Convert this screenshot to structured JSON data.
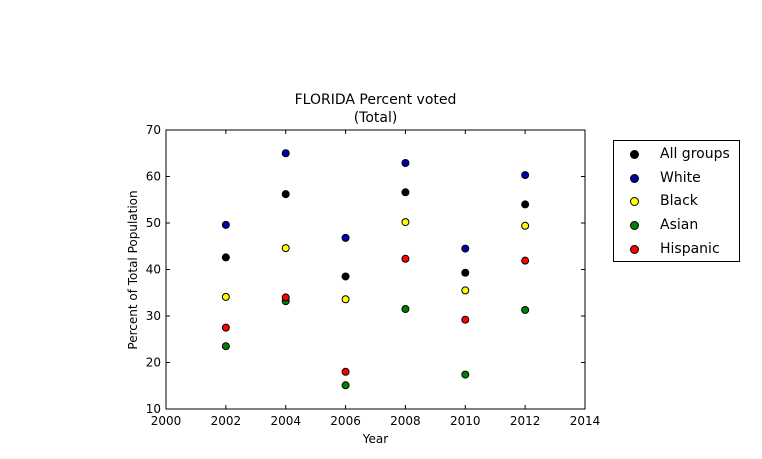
{
  "chart_data": {
    "type": "scatter",
    "title": "FLORIDA Percent voted",
    "subtitle": "(Total)",
    "xlabel": "Year",
    "ylabel": "Percent of Total Population",
    "xlim": [
      2000,
      2014
    ],
    "ylim": [
      10,
      70
    ],
    "xticks": [
      2000,
      2002,
      2004,
      2006,
      2008,
      2010,
      2012,
      2014
    ],
    "yticks": [
      10,
      20,
      30,
      40,
      50,
      60,
      70
    ],
    "grid": false,
    "legend_position": "outside-right",
    "x": [
      2002,
      2004,
      2006,
      2008,
      2010,
      2012
    ],
    "series": [
      {
        "name": "All groups",
        "color": "#000000",
        "values": [
          42.6,
          56.2,
          38.5,
          56.6,
          39.3,
          54.0
        ]
      },
      {
        "name": "White",
        "color": "#0000aa",
        "values": [
          49.6,
          65.0,
          46.8,
          62.9,
          44.5,
          60.3
        ]
      },
      {
        "name": "Black",
        "color": "#ffff00",
        "values": [
          34.1,
          44.6,
          33.6,
          50.2,
          35.5,
          49.4
        ]
      },
      {
        "name": "Asian",
        "color": "#008000",
        "values": [
          23.5,
          33.2,
          15.1,
          31.5,
          17.4,
          31.3
        ]
      },
      {
        "name": "Hispanic",
        "color": "#ff0000",
        "values": [
          27.5,
          34.0,
          18.0,
          42.3,
          29.2,
          41.9
        ]
      }
    ]
  }
}
